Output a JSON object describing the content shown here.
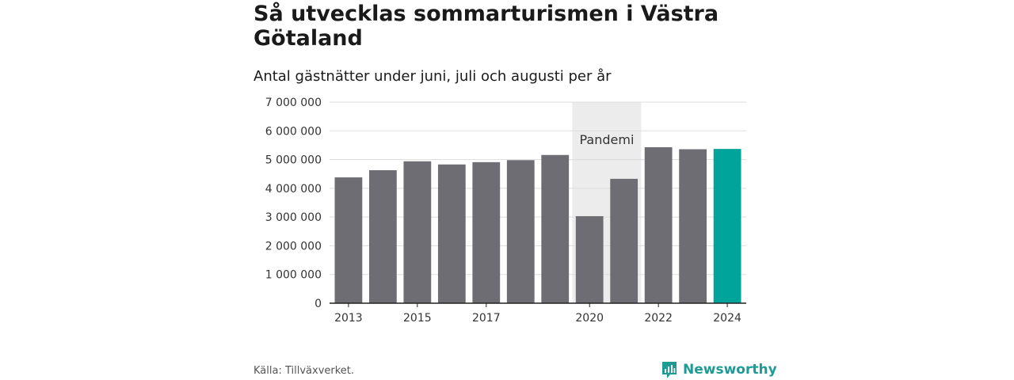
{
  "title": "Så utvecklas sommarturismen i Västra Götaland",
  "subtitle": "Antal gästnätter under juni, juli och augusti per år",
  "source": "Källa: Tillväxverket.",
  "brand": "Newsworthy",
  "colors": {
    "bar": "#6e6d73",
    "highlight": "#00a49a",
    "pandemic_band": "#ececec",
    "grid": "#dddddd",
    "brand": "#1e9b94"
  },
  "chart_data": {
    "type": "bar",
    "title": "Så utvecklas sommarturismen i Västra Götaland",
    "subtitle": "Antal gästnätter under juni, juli och augusti per år",
    "categories": [
      "2013",
      "2014",
      "2015",
      "2016",
      "2017",
      "2018",
      "2019",
      "2020",
      "2021",
      "2022",
      "2023",
      "2024"
    ],
    "values": [
      4380000,
      4630000,
      4940000,
      4830000,
      4910000,
      4980000,
      5160000,
      3030000,
      4330000,
      5430000,
      5360000,
      5370000
    ],
    "highlight_category": "2024",
    "ylim": [
      0,
      7000000
    ],
    "y_ticks": [
      0,
      1000000,
      2000000,
      3000000,
      4000000,
      5000000,
      6000000,
      7000000
    ],
    "y_tick_labels": [
      "0",
      "1 000 000",
      "2 000 000",
      "3 000 000",
      "4 000 000",
      "5 000 000",
      "6 000 000",
      "7 000 000"
    ],
    "x_tick_labels": [
      "2013",
      "2015",
      "2017",
      "2020",
      "2022",
      "2024"
    ],
    "grid": true,
    "annotations": [
      {
        "label": "Pandemi",
        "from": "2020",
        "to": "2021"
      }
    ]
  }
}
